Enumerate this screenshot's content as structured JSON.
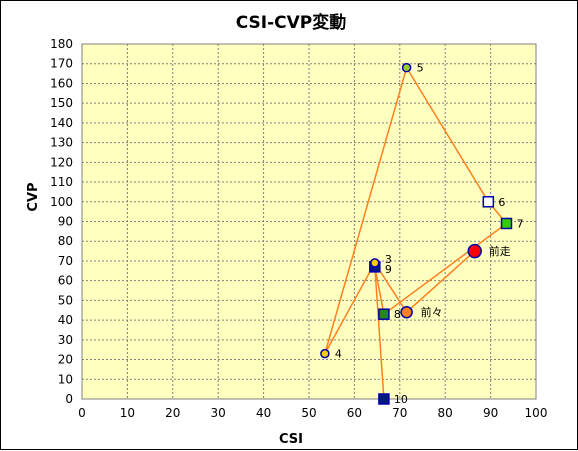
{
  "chart_data": {
    "type": "scatter",
    "title": "CSI-CVP変動",
    "xlabel": "CSI",
    "ylabel": "CVP",
    "xlim": [
      0,
      100
    ],
    "ylim": [
      0,
      180
    ],
    "x_ticks": [
      0,
      10,
      20,
      30,
      40,
      50,
      60,
      70,
      80,
      90,
      100
    ],
    "y_ticks": [
      0,
      10,
      20,
      30,
      40,
      50,
      60,
      70,
      80,
      90,
      100,
      110,
      120,
      130,
      140,
      150,
      160,
      170,
      180
    ],
    "grid": true,
    "plot_background": "#ffffc0",
    "line_color": "#ff8020",
    "points": [
      {
        "label": "前走",
        "x": 86.5,
        "y": 75,
        "marker": "circle-large",
        "fill": "#ff0000",
        "stroke": "#0000aa"
      },
      {
        "label": "前々",
        "x": 71.5,
        "y": 44,
        "marker": "circle",
        "fill": "#ff8020",
        "stroke": "#0000aa"
      },
      {
        "label": "3",
        "x": 64.5,
        "y": 69,
        "marker": "circle-small",
        "fill": "#ffcc00",
        "stroke": "#0000aa"
      },
      {
        "label": "4",
        "x": 53.5,
        "y": 23,
        "marker": "circle-small",
        "fill": "#ffcc00",
        "stroke": "#0000aa"
      },
      {
        "label": "5",
        "x": 71.5,
        "y": 168,
        "marker": "circle-small",
        "fill": "#99cc33",
        "stroke": "#0000aa"
      },
      {
        "label": "6",
        "x": 89.5,
        "y": 100,
        "marker": "square",
        "fill": "#ffffff",
        "stroke": "#0000aa"
      },
      {
        "label": "7",
        "x": 93.5,
        "y": 89,
        "marker": "square",
        "fill": "#33cc00",
        "stroke": "#0000aa"
      },
      {
        "label": "8",
        "x": 66.5,
        "y": 43,
        "marker": "square",
        "fill": "#228822",
        "stroke": "#0000aa"
      },
      {
        "label": "9",
        "x": 64.5,
        "y": 67,
        "marker": "square",
        "fill": "#001a80",
        "stroke": "#0000aa"
      },
      {
        "label": "10",
        "x": 66.5,
        "y": 0,
        "marker": "square",
        "fill": "#001a80",
        "stroke": "#0000aa"
      }
    ]
  }
}
